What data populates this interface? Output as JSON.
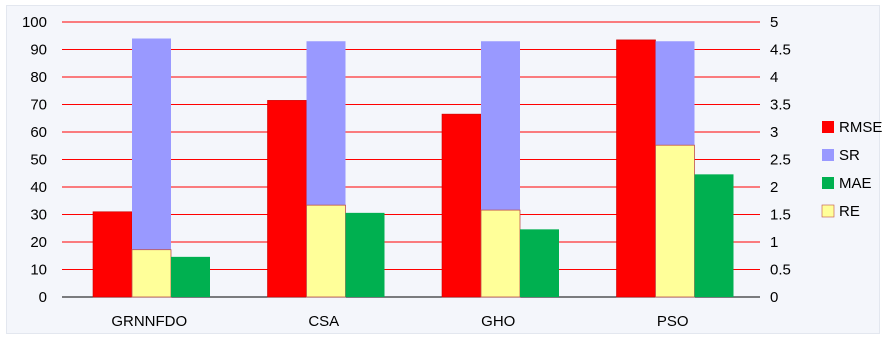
{
  "chart_data": {
    "type": "bar",
    "categories": [
      "GRNNFDO",
      "CSA",
      "GHO",
      "PSO"
    ],
    "series": [
      {
        "name": "RMSE",
        "values": [
          31,
          71.5,
          66.5,
          93.5
        ],
        "color": "#ff0000",
        "axis": "left"
      },
      {
        "name": "SR",
        "values": [
          94,
          93,
          93,
          93
        ],
        "color": "#9999ff",
        "axis": "left",
        "overlay": true
      },
      {
        "name": "MAE",
        "values": [
          0.73,
          1.53,
          1.23,
          2.23
        ],
        "color": "#00b050",
        "axis": "right"
      },
      {
        "name": "RE",
        "values": [
          0.86,
          1.67,
          1.58,
          2.76
        ],
        "color": "#ffff99",
        "axis": "right"
      }
    ],
    "ylim": [
      0,
      100
    ],
    "y_ticks": [
      "0",
      "10",
      "20",
      "30",
      "40",
      "50",
      "60",
      "70",
      "80",
      "90",
      "100"
    ],
    "y2lim": [
      0,
      5
    ],
    "y2_ticks": [
      "0",
      "0.5",
      "1",
      "1.5",
      "2",
      "2.5",
      "3",
      "3.5",
      "4",
      "4.5",
      "5"
    ],
    "grid": true,
    "grid_color": "#ff0000",
    "legend_position": "right",
    "xlabel": "",
    "ylabel": ""
  }
}
